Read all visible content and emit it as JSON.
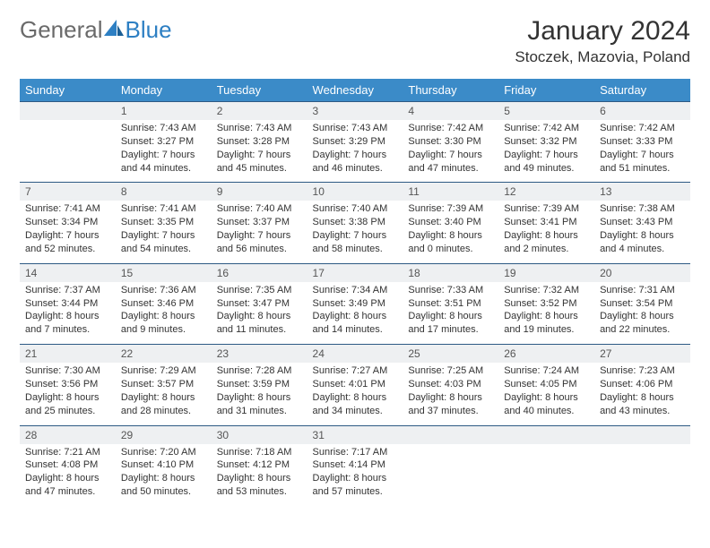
{
  "brand": {
    "part1": "General",
    "part2": "Blue"
  },
  "title": "January 2024",
  "location": "Stoczek, Mazovia, Poland",
  "colors": {
    "header_bg": "#3b8bc8",
    "header_text": "#ffffff",
    "daynum_bg": "#eef0f2",
    "row_border": "#2d5a84",
    "brand_gray": "#6a6a6a",
    "brand_blue": "#2d7fc3",
    "text": "#333333",
    "background": "#ffffff"
  },
  "typography": {
    "body_fontsize": 11,
    "daynum_fontsize": 12,
    "header_fontsize": 13,
    "title_fontsize": 30,
    "location_fontsize": 17
  },
  "weekdays": [
    "Sunday",
    "Monday",
    "Tuesday",
    "Wednesday",
    "Thursday",
    "Friday",
    "Saturday"
  ],
  "weeks": [
    [
      {
        "n": "",
        "sr": "",
        "ss": "",
        "dl": ""
      },
      {
        "n": "1",
        "sr": "Sunrise: 7:43 AM",
        "ss": "Sunset: 3:27 PM",
        "dl": "Daylight: 7 hours and 44 minutes."
      },
      {
        "n": "2",
        "sr": "Sunrise: 7:43 AM",
        "ss": "Sunset: 3:28 PM",
        "dl": "Daylight: 7 hours and 45 minutes."
      },
      {
        "n": "3",
        "sr": "Sunrise: 7:43 AM",
        "ss": "Sunset: 3:29 PM",
        "dl": "Daylight: 7 hours and 46 minutes."
      },
      {
        "n": "4",
        "sr": "Sunrise: 7:42 AM",
        "ss": "Sunset: 3:30 PM",
        "dl": "Daylight: 7 hours and 47 minutes."
      },
      {
        "n": "5",
        "sr": "Sunrise: 7:42 AM",
        "ss": "Sunset: 3:32 PM",
        "dl": "Daylight: 7 hours and 49 minutes."
      },
      {
        "n": "6",
        "sr": "Sunrise: 7:42 AM",
        "ss": "Sunset: 3:33 PM",
        "dl": "Daylight: 7 hours and 51 minutes."
      }
    ],
    [
      {
        "n": "7",
        "sr": "Sunrise: 7:41 AM",
        "ss": "Sunset: 3:34 PM",
        "dl": "Daylight: 7 hours and 52 minutes."
      },
      {
        "n": "8",
        "sr": "Sunrise: 7:41 AM",
        "ss": "Sunset: 3:35 PM",
        "dl": "Daylight: 7 hours and 54 minutes."
      },
      {
        "n": "9",
        "sr": "Sunrise: 7:40 AM",
        "ss": "Sunset: 3:37 PM",
        "dl": "Daylight: 7 hours and 56 minutes."
      },
      {
        "n": "10",
        "sr": "Sunrise: 7:40 AM",
        "ss": "Sunset: 3:38 PM",
        "dl": "Daylight: 7 hours and 58 minutes."
      },
      {
        "n": "11",
        "sr": "Sunrise: 7:39 AM",
        "ss": "Sunset: 3:40 PM",
        "dl": "Daylight: 8 hours and 0 minutes."
      },
      {
        "n": "12",
        "sr": "Sunrise: 7:39 AM",
        "ss": "Sunset: 3:41 PM",
        "dl": "Daylight: 8 hours and 2 minutes."
      },
      {
        "n": "13",
        "sr": "Sunrise: 7:38 AM",
        "ss": "Sunset: 3:43 PM",
        "dl": "Daylight: 8 hours and 4 minutes."
      }
    ],
    [
      {
        "n": "14",
        "sr": "Sunrise: 7:37 AM",
        "ss": "Sunset: 3:44 PM",
        "dl": "Daylight: 8 hours and 7 minutes."
      },
      {
        "n": "15",
        "sr": "Sunrise: 7:36 AM",
        "ss": "Sunset: 3:46 PM",
        "dl": "Daylight: 8 hours and 9 minutes."
      },
      {
        "n": "16",
        "sr": "Sunrise: 7:35 AM",
        "ss": "Sunset: 3:47 PM",
        "dl": "Daylight: 8 hours and 11 minutes."
      },
      {
        "n": "17",
        "sr": "Sunrise: 7:34 AM",
        "ss": "Sunset: 3:49 PM",
        "dl": "Daylight: 8 hours and 14 minutes."
      },
      {
        "n": "18",
        "sr": "Sunrise: 7:33 AM",
        "ss": "Sunset: 3:51 PM",
        "dl": "Daylight: 8 hours and 17 minutes."
      },
      {
        "n": "19",
        "sr": "Sunrise: 7:32 AM",
        "ss": "Sunset: 3:52 PM",
        "dl": "Daylight: 8 hours and 19 minutes."
      },
      {
        "n": "20",
        "sr": "Sunrise: 7:31 AM",
        "ss": "Sunset: 3:54 PM",
        "dl": "Daylight: 8 hours and 22 minutes."
      }
    ],
    [
      {
        "n": "21",
        "sr": "Sunrise: 7:30 AM",
        "ss": "Sunset: 3:56 PM",
        "dl": "Daylight: 8 hours and 25 minutes."
      },
      {
        "n": "22",
        "sr": "Sunrise: 7:29 AM",
        "ss": "Sunset: 3:57 PM",
        "dl": "Daylight: 8 hours and 28 minutes."
      },
      {
        "n": "23",
        "sr": "Sunrise: 7:28 AM",
        "ss": "Sunset: 3:59 PM",
        "dl": "Daylight: 8 hours and 31 minutes."
      },
      {
        "n": "24",
        "sr": "Sunrise: 7:27 AM",
        "ss": "Sunset: 4:01 PM",
        "dl": "Daylight: 8 hours and 34 minutes."
      },
      {
        "n": "25",
        "sr": "Sunrise: 7:25 AM",
        "ss": "Sunset: 4:03 PM",
        "dl": "Daylight: 8 hours and 37 minutes."
      },
      {
        "n": "26",
        "sr": "Sunrise: 7:24 AM",
        "ss": "Sunset: 4:05 PM",
        "dl": "Daylight: 8 hours and 40 minutes."
      },
      {
        "n": "27",
        "sr": "Sunrise: 7:23 AM",
        "ss": "Sunset: 4:06 PM",
        "dl": "Daylight: 8 hours and 43 minutes."
      }
    ],
    [
      {
        "n": "28",
        "sr": "Sunrise: 7:21 AM",
        "ss": "Sunset: 4:08 PM",
        "dl": "Daylight: 8 hours and 47 minutes."
      },
      {
        "n": "29",
        "sr": "Sunrise: 7:20 AM",
        "ss": "Sunset: 4:10 PM",
        "dl": "Daylight: 8 hours and 50 minutes."
      },
      {
        "n": "30",
        "sr": "Sunrise: 7:18 AM",
        "ss": "Sunset: 4:12 PM",
        "dl": "Daylight: 8 hours and 53 minutes."
      },
      {
        "n": "31",
        "sr": "Sunrise: 7:17 AM",
        "ss": "Sunset: 4:14 PM",
        "dl": "Daylight: 8 hours and 57 minutes."
      },
      {
        "n": "",
        "sr": "",
        "ss": "",
        "dl": ""
      },
      {
        "n": "",
        "sr": "",
        "ss": "",
        "dl": ""
      },
      {
        "n": "",
        "sr": "",
        "ss": "",
        "dl": ""
      }
    ]
  ]
}
